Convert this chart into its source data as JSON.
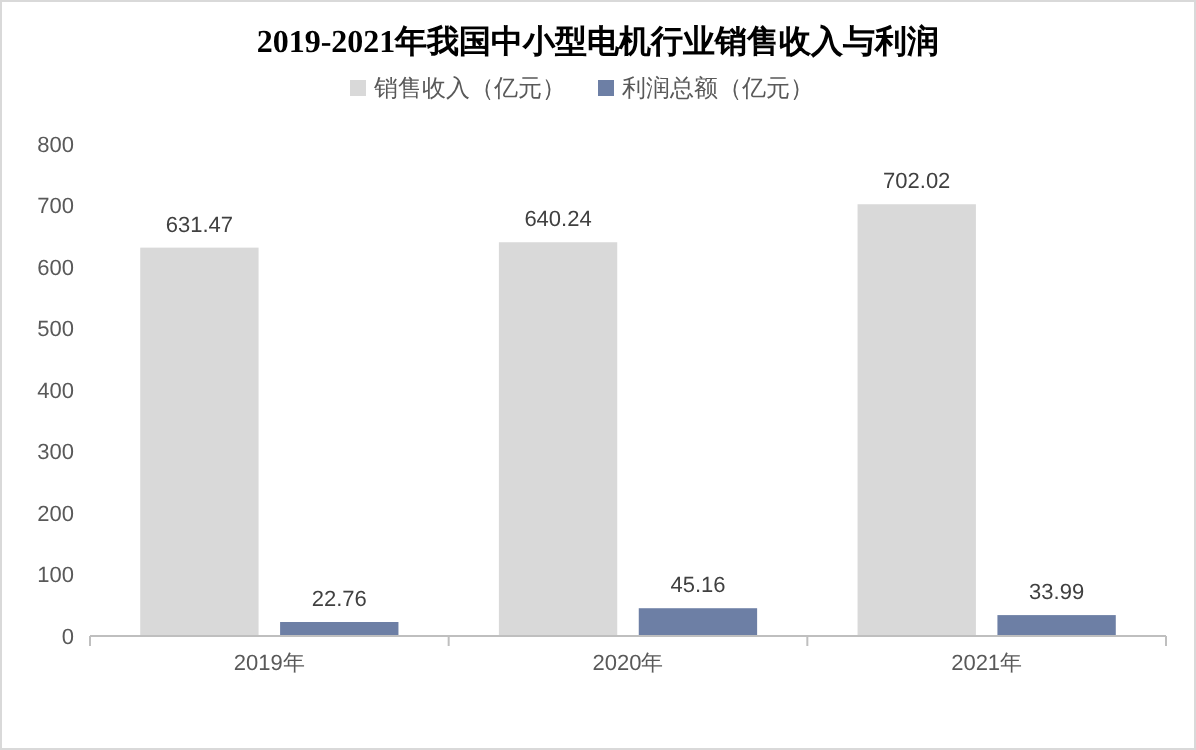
{
  "chart_data": {
    "type": "bar",
    "title": "2019-2021年我国中小型电机行业销售收入与利润",
    "categories": [
      "2019年",
      "2020年",
      "2021年"
    ],
    "series": [
      {
        "name": "销售收入（亿元）",
        "color": "#d9d9d9",
        "values": [
          631.47,
          640.24,
          702.02
        ]
      },
      {
        "name": "利润总额（亿元）",
        "color": "#6d7fa5",
        "values": [
          22.76,
          45.16,
          33.99
        ]
      }
    ],
    "ylim": [
      0,
      800
    ],
    "yticks": [
      0,
      100,
      200,
      300,
      400,
      500,
      600,
      700,
      800
    ],
    "data_labels": true,
    "legend": "top",
    "grid": false
  }
}
